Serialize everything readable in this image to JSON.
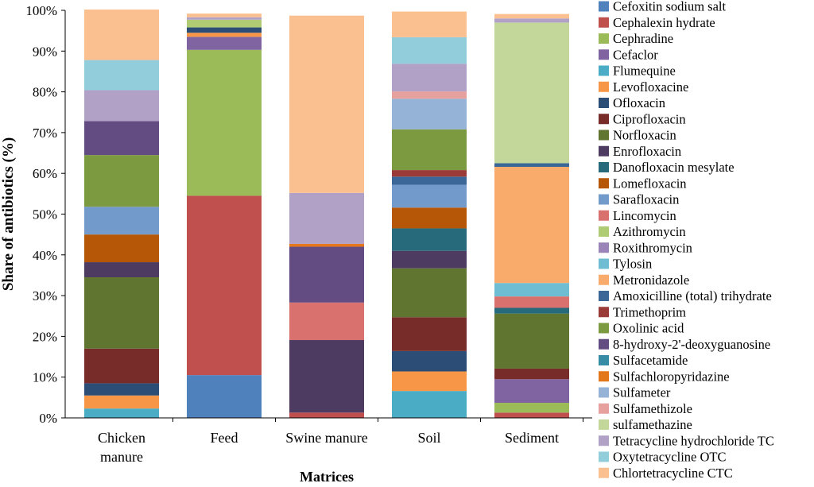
{
  "chart_data": {
    "type": "bar",
    "stacked": true,
    "percent": true,
    "xlabel": "Matrices",
    "ylabel": "Share of antibiotics (%)",
    "ylim": [
      0,
      100
    ],
    "yticks": [
      "0%",
      "10%",
      "20%",
      "30%",
      "40%",
      "50%",
      "60%",
      "70%",
      "80%",
      "90%",
      "100%"
    ],
    "grid": false,
    "legend_position": "right",
    "categories": [
      {
        "lines": [
          "Chicken",
          "manure"
        ]
      },
      {
        "lines": [
          "Feed"
        ]
      },
      {
        "lines": [
          "Swine manure"
        ]
      },
      {
        "lines": [
          "Soil"
        ]
      },
      {
        "lines": [
          "Sediment"
        ]
      }
    ],
    "series": [
      {
        "name": "Cefoxitin sodium salt",
        "color": "#4F81BD",
        "values": [
          0,
          10.5,
          0,
          0,
          0
        ]
      },
      {
        "name": "Cephalexin hydrate",
        "color": "#C0504D",
        "values": [
          0,
          44,
          1.3,
          0,
          1.3
        ]
      },
      {
        "name": "Cephradine",
        "color": "#9BBB59",
        "values": [
          0,
          35.8,
          0,
          0,
          2.4
        ]
      },
      {
        "name": "Cefaclor",
        "color": "#8064A2",
        "values": [
          0,
          3.2,
          0,
          0,
          5.8
        ]
      },
      {
        "name": "Flumequine",
        "color": "#4BACC6",
        "values": [
          2.3,
          0,
          0,
          6.6,
          0
        ]
      },
      {
        "name": "Levofloxacine",
        "color": "#F79646",
        "values": [
          3.2,
          1,
          0,
          4.8,
          0
        ]
      },
      {
        "name": "Ofloxacin",
        "color": "#2C4D75",
        "values": [
          3,
          1.3,
          0,
          5,
          0
        ]
      },
      {
        "name": "Ciprofloxacin",
        "color": "#772C2A",
        "values": [
          8.5,
          0,
          0,
          8.3,
          2.6
        ]
      },
      {
        "name": "Norfloxacin",
        "color": "#5F7530",
        "values": [
          17.5,
          0,
          0,
          12,
          13.5
        ]
      },
      {
        "name": "Enrofloxacin",
        "color": "#4D3B62",
        "values": [
          3.7,
          0,
          17.8,
          4.3,
          0
        ]
      },
      {
        "name": "Danofloxacin mesylate",
        "color": "#276A7C",
        "values": [
          0,
          0,
          0,
          5.5,
          1.4
        ]
      },
      {
        "name": "Lomefloxacin",
        "color": "#B65708",
        "values": [
          6.8,
          0,
          0,
          5.1,
          0
        ]
      },
      {
        "name": "Sarafloxacin",
        "color": "#729ACA",
        "values": [
          6.8,
          0,
          0,
          5.6,
          0
        ]
      },
      {
        "name": "Lincomycin",
        "color": "#D9716F",
        "values": [
          0,
          0,
          9.2,
          0,
          2.8
        ]
      },
      {
        "name": "Azithromycin",
        "color": "#AFCB74",
        "values": [
          0,
          1.9,
          0,
          0,
          0
        ]
      },
      {
        "name": "Roxithromycin",
        "color": "#9B84B8",
        "values": [
          0,
          0,
          0,
          0,
          0
        ]
      },
      {
        "name": "Tylosin",
        "color": "#6FBDD3",
        "values": [
          0,
          0,
          0,
          0,
          3.3
        ]
      },
      {
        "name": "Metronidazole",
        "color": "#F9AB6B",
        "values": [
          0,
          0,
          0,
          0,
          28.5
        ]
      },
      {
        "name": "Amoxicilline (total) trihydrate",
        "color": "#3A6797",
        "values": [
          0,
          0,
          0,
          2,
          0.9
        ]
      },
      {
        "name": "Trimethoprim",
        "color": "#9B3B38",
        "values": [
          0,
          0,
          0,
          1.6,
          0
        ]
      },
      {
        "name": "Oxolinic acid",
        "color": "#7C9A40",
        "values": [
          12.7,
          0,
          0,
          10,
          0
        ]
      },
      {
        "name": "8-hydroxy-2'-deoxyguanosine",
        "color": "#634C81",
        "values": [
          8.3,
          0,
          13.7,
          0,
          0
        ]
      },
      {
        "name": "Sulfacetamide",
        "color": "#358CA4",
        "values": [
          0,
          0,
          0,
          0,
          0
        ]
      },
      {
        "name": "Sulfachloropyridazine",
        "color": "#E3771C",
        "values": [
          0,
          0,
          0.7,
          0,
          0
        ]
      },
      {
        "name": "Sulfameter",
        "color": "#95B3D7",
        "values": [
          0,
          0,
          0,
          7.5,
          0
        ]
      },
      {
        "name": "Sulfamethizole",
        "color": "#E6A09D",
        "values": [
          0,
          0,
          0,
          1.8,
          0
        ]
      },
      {
        "name": "sulfamethazine",
        "color": "#C4D79B",
        "values": [
          0,
          0,
          0,
          0,
          34.5
        ]
      },
      {
        "name": "Tetracycline hydrochloride TC",
        "color": "#B2A1C7",
        "values": [
          7.6,
          0.6,
          12.5,
          6.8,
          1
        ]
      },
      {
        "name": "Oxytetracycline OTC",
        "color": "#92CDDC",
        "values": [
          7.4,
          0,
          0,
          6.5,
          0
        ]
      },
      {
        "name": "Chlortetracycline CTC",
        "color": "#FAC090",
        "values": [
          12.4,
          0.9,
          43.5,
          6.3,
          1.1
        ]
      }
    ]
  }
}
